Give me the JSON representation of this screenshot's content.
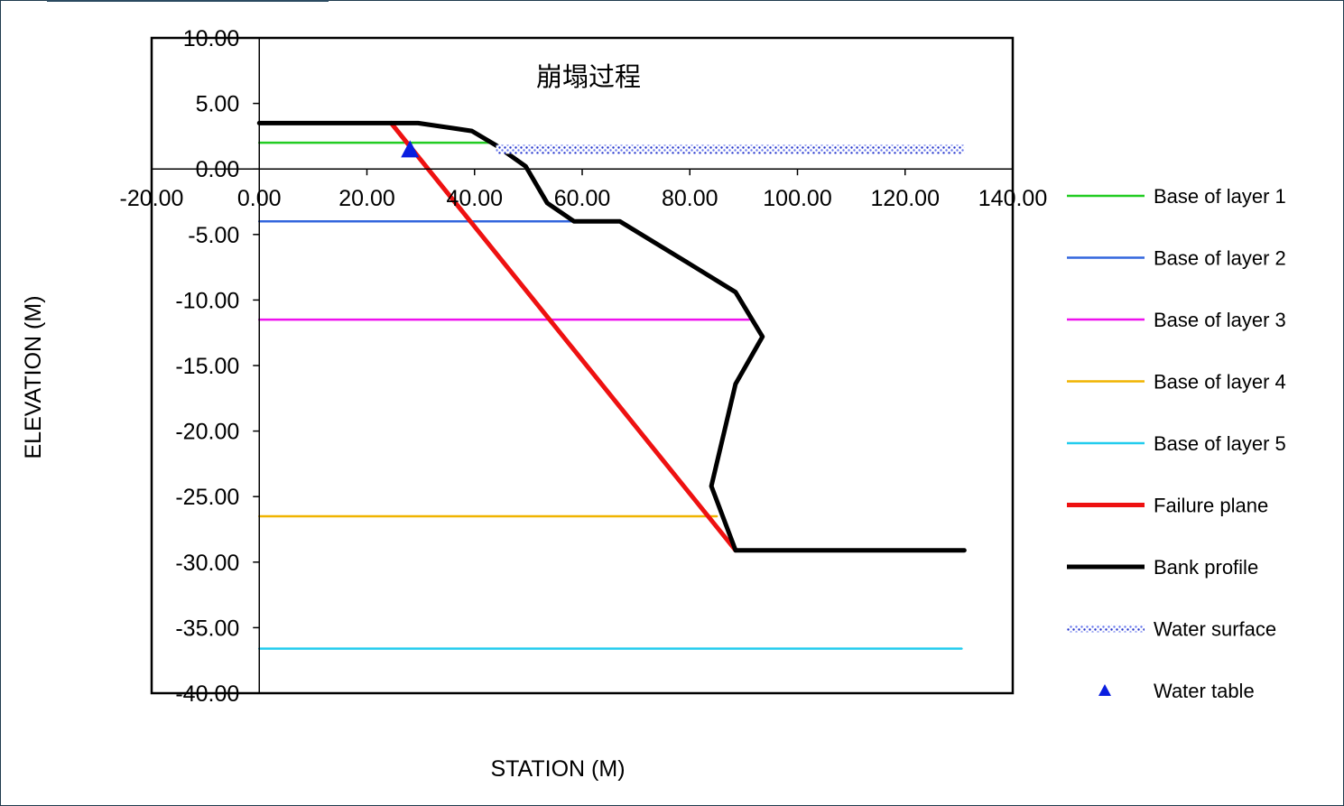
{
  "chart_data": {
    "type": "line",
    "title": "崩塌过程",
    "xlabel": "STATION  (M)",
    "ylabel": "ELEVATION  (M)",
    "xlim": [
      -20,
      140
    ],
    "ylim": [
      -40,
      10
    ],
    "x_ticks": [
      "-20.00",
      "0.00",
      "20.00",
      "40.00",
      "60.00",
      "80.00",
      "100.00",
      "120.00",
      "140.00"
    ],
    "y_ticks": [
      "10.00",
      "5.00",
      "0.00",
      "-5.00",
      "-10.00",
      "-15.00",
      "-20.00",
      "-25.00",
      "-30.00",
      "-35.00",
      "-40.00"
    ],
    "grid": false,
    "legend_position": "right",
    "series": [
      {
        "name": "Base of layer 1",
        "color": "#22cc22",
        "style": "line",
        "points": [
          [
            0,
            2.0
          ],
          [
            43,
            2.0
          ]
        ]
      },
      {
        "name": "Base of layer 2",
        "color": "#3366dd",
        "style": "line",
        "points": [
          [
            0,
            -4.0
          ],
          [
            58,
            -4.0
          ]
        ]
      },
      {
        "name": "Base of layer 3",
        "color": "#ee11ee",
        "style": "line",
        "points": [
          [
            0,
            -11.5
          ],
          [
            91,
            -11.5
          ]
        ]
      },
      {
        "name": "Base of layer 4",
        "color": "#f0b400",
        "style": "line",
        "points": [
          [
            0,
            -26.5
          ],
          [
            85,
            -26.5
          ]
        ]
      },
      {
        "name": "Base of layer 5",
        "color": "#22ccee",
        "style": "line",
        "points": [
          [
            0,
            -36.6
          ],
          [
            130.5,
            -36.6
          ]
        ]
      },
      {
        "name": "Failure plane",
        "color": "#ee1111",
        "style": "thick",
        "points": [
          [
            24.5,
            3.5
          ],
          [
            88.5,
            -29.1
          ]
        ]
      },
      {
        "name": "Bank profile",
        "color": "#000000",
        "style": "thick",
        "points": [
          [
            0,
            3.5
          ],
          [
            29.5,
            3.5
          ],
          [
            39.5,
            2.9
          ],
          [
            44,
            1.8
          ],
          [
            49.5,
            0.2
          ],
          [
            53.5,
            -2.6
          ],
          [
            58.5,
            -4.0
          ],
          [
            67,
            -4.0
          ],
          [
            79,
            -7.0
          ],
          [
            88.5,
            -9.4
          ],
          [
            93.5,
            -12.8
          ],
          [
            88.5,
            -16.4
          ],
          [
            84,
            -24.2
          ],
          [
            88.5,
            -29.1
          ],
          [
            131,
            -29.1
          ]
        ]
      },
      {
        "name": "Water surface",
        "color": "#2233cc",
        "style": "dotted-band",
        "points": [
          [
            44,
            1.5
          ],
          [
            131,
            1.5
          ]
        ]
      },
      {
        "name": "Water table",
        "color": "#0a1ee0",
        "style": "marker",
        "points": [
          [
            28,
            1.5
          ]
        ]
      }
    ]
  }
}
